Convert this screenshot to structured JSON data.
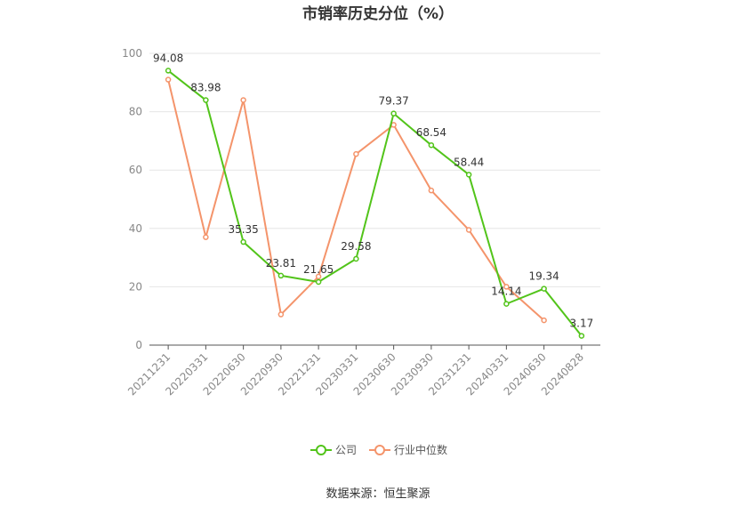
{
  "chart_data": {
    "type": "line",
    "title": "市销率历史分位（%）",
    "ylim": [
      0,
      100
    ],
    "yticks": [
      0,
      20,
      40,
      60,
      80,
      100
    ],
    "categories": [
      "20211231",
      "20220331",
      "20220630",
      "20220930",
      "20221231",
      "20230331",
      "20230630",
      "20230930",
      "20231231",
      "20240331",
      "20240630",
      "20240828"
    ],
    "series": [
      {
        "name": "公司",
        "color": "#52c41a",
        "values": [
          94.08,
          83.98,
          35.35,
          23.81,
          21.65,
          29.58,
          79.37,
          68.54,
          58.44,
          14.14,
          19.34,
          3.17
        ],
        "labels": [
          "94.08",
          "83.98",
          "35.35",
          "23.81",
          "21.65",
          "29.58",
          "79.37",
          "68.54",
          "58.44",
          "14.14",
          "19.34",
          "3.17"
        ]
      },
      {
        "name": "行业中位数",
        "color": "#f4946b",
        "values": [
          91,
          37,
          84,
          10.5,
          23.5,
          65.5,
          75.5,
          53,
          39.5,
          20,
          8.5,
          null
        ]
      }
    ],
    "grid": true,
    "legend": "bottom-center"
  },
  "source": "数据来源：恒生聚源"
}
